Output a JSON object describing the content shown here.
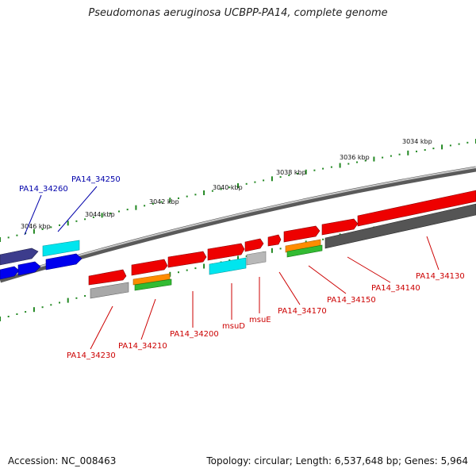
{
  "title": "Pseudomonas aeruginosa UCBPP-PA14, complete genome",
  "footer": {
    "accession": "Accession: NC_008463",
    "topology": "Topology: circular; Length: 6,537,648 bp; Genes: 5,964"
  },
  "scale_labels": [
    "3046 kbp",
    "3044 kbp",
    "3042 kbp",
    "3040 kbp",
    "3038 kbp",
    "3036 kbp",
    "3034 kbp"
  ],
  "gene_labels_top": [
    "PA14_34260",
    "PA14_34250"
  ],
  "gene_labels_bottom": [
    "PA14_34230",
    "PA14_34210",
    "PA14_34200",
    "msuD",
    "msuE",
    "PA14_34170",
    "PA14_34150",
    "PA14_34140",
    "PA14_34130"
  ],
  "colors": {
    "top_label": "#0000aa",
    "bottom_label": "#cc0000",
    "scale_dots": "#228822",
    "gene_red": "#ee0000",
    "gene_blue": "#0000ee",
    "gene_navy": "#3c3c8c",
    "gene_cyan": "#00e5ee",
    "gene_gray": "#a8a8a8",
    "gene_darkgray": "#555555",
    "gene_orange": "#ff8c00",
    "gene_green": "#33bb33"
  }
}
